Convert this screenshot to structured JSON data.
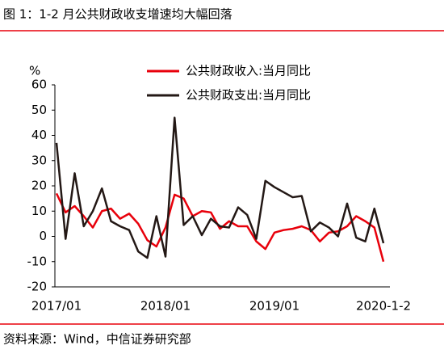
{
  "chart_data": {
    "type": "line",
    "title": "图 1：1-2 月公共财政收支增速均大幅回落",
    "source": "资料来源：Wind，中信证券研究部",
    "y_unit": "%",
    "categories": [
      "2017/01",
      null,
      null,
      null,
      null,
      null,
      null,
      null,
      null,
      null,
      null,
      null,
      "2018/01",
      null,
      null,
      null,
      null,
      null,
      null,
      null,
      null,
      null,
      null,
      null,
      "2019/01",
      null,
      null,
      null,
      null,
      null,
      null,
      null,
      null,
      null,
      null,
      null,
      "2020-1-2"
    ],
    "series": [
      {
        "name": "公共财政收入:当月同比",
        "color": "#e8000b",
        "values": [
          17,
          9.5,
          12,
          8,
          3.5,
          10,
          11,
          7,
          9,
          5,
          -1.5,
          -4,
          3.5,
          16.5,
          15,
          8,
          10,
          9.5,
          3,
          6,
          4,
          4,
          -2,
          -5,
          1.5,
          2.5,
          3,
          4,
          2.5,
          -2,
          1.5,
          2,
          4,
          8,
          6,
          3.5,
          -10
        ]
      },
      {
        "name": "公共财政支出:当月同比",
        "color": "#231815",
        "values": [
          37,
          -1,
          25,
          4,
          10,
          19,
          6,
          4,
          2.5,
          -6,
          -8.5,
          8,
          -8,
          47,
          4.5,
          8,
          0.5,
          7,
          4,
          3.5,
          11.5,
          8.5,
          -1,
          22,
          19.5,
          17.5,
          15.5,
          16,
          2,
          5.5,
          3.5,
          0,
          13,
          -0.5,
          -2,
          11,
          -2.7
        ]
      }
    ],
    "ylim": [
      -20,
      60
    ],
    "yticks": [
      -20,
      -10,
      0,
      10,
      20,
      30,
      40,
      50,
      60
    ]
  }
}
